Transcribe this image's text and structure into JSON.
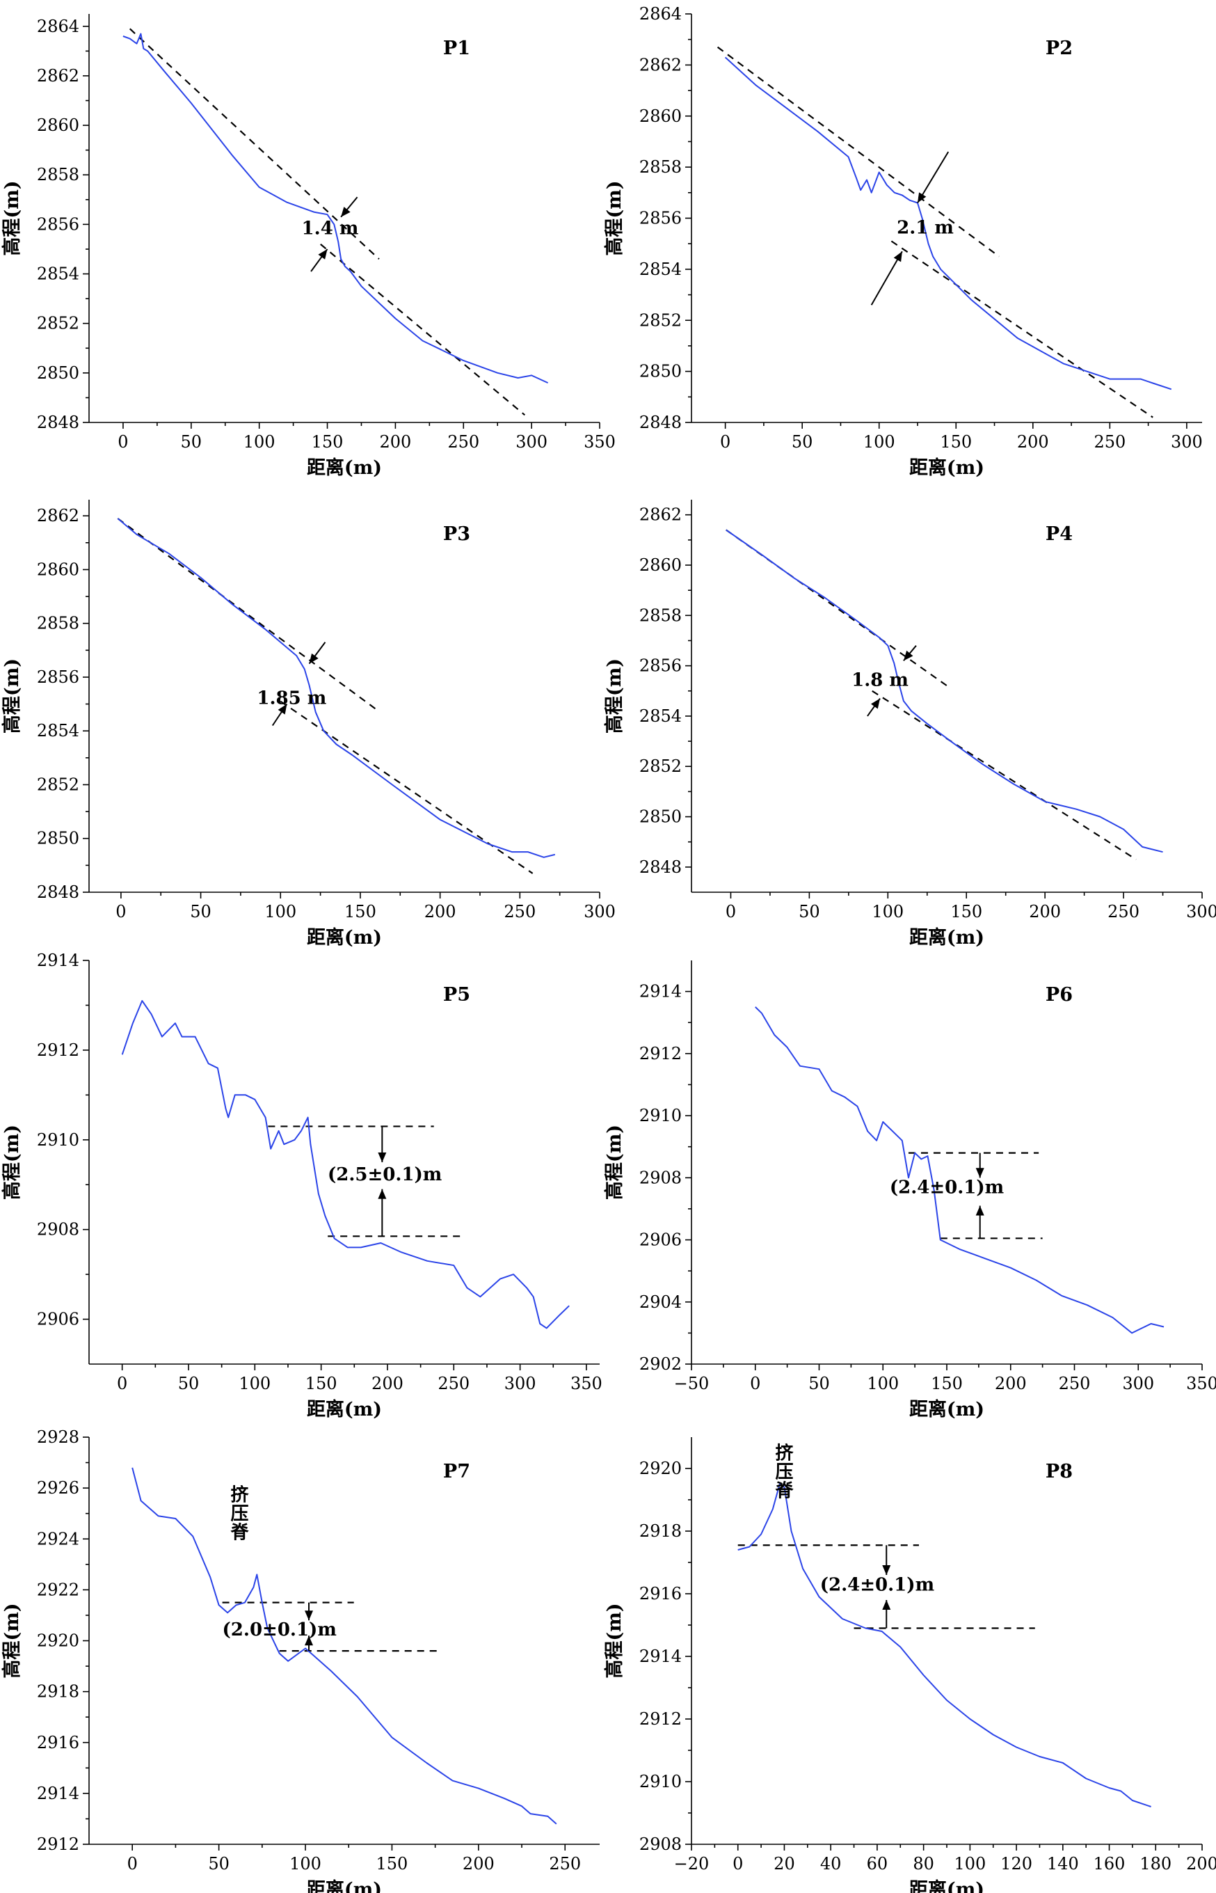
{
  "chart_data": [
    {
      "id": "P1",
      "type": "line",
      "title": "P1",
      "xlabel": "距离(m)",
      "ylabel": "高程(m)",
      "xlim": [
        -25,
        350
      ],
      "ylim": [
        2848,
        2864.5
      ],
      "xticks": [
        0,
        50,
        100,
        150,
        200,
        250,
        300,
        350
      ],
      "yticks": [
        2848,
        2850,
        2852,
        2854,
        2856,
        2858,
        2860,
        2862,
        2864
      ],
      "series": [
        {
          "name": "profile",
          "x": [
            0,
            5,
            10,
            13,
            15,
            18,
            30,
            50,
            80,
            100,
            120,
            140,
            150,
            155,
            158,
            160,
            163,
            167,
            175,
            200,
            220,
            250,
            265,
            275,
            290,
            300,
            312
          ],
          "y": [
            2863.6,
            2863.5,
            2863.3,
            2863.7,
            2863.1,
            2863.0,
            2862.2,
            2860.9,
            2858.8,
            2857.5,
            2856.9,
            2856.5,
            2856.4,
            2856.0,
            2855.3,
            2854.6,
            2854.3,
            2854.1,
            2853.5,
            2852.2,
            2851.3,
            2850.5,
            2850.2,
            2850.0,
            2849.8,
            2849.9,
            2849.6
          ]
        }
      ],
      "ref_lines": [
        {
          "x": [
            5,
            188
          ],
          "y": [
            2863.9,
            2854.6
          ]
        },
        {
          "x": [
            145,
            295
          ],
          "y": [
            2855.2,
            2848.3
          ]
        }
      ],
      "offset_label": "1.4 m",
      "offset_label_pos": [
        152,
        2855.6
      ],
      "arrows": [
        {
          "tail": [
            172,
            2857.1
          ],
          "head": [
            160,
            2856.3
          ]
        },
        {
          "tail": [
            138,
            2854.1
          ],
          "head": [
            150,
            2855.0
          ]
        }
      ]
    },
    {
      "id": "P2",
      "type": "line",
      "title": "P2",
      "xlabel": "距离(m)",
      "ylabel": "高程(m)",
      "xlim": [
        -22,
        310
      ],
      "ylim": [
        2848,
        2864
      ],
      "xticks": [
        0,
        50,
        100,
        150,
        200,
        250,
        300
      ],
      "yticks": [
        2848,
        2850,
        2852,
        2854,
        2856,
        2858,
        2860,
        2862,
        2864
      ],
      "series": [
        {
          "name": "profile",
          "x": [
            0,
            20,
            40,
            60,
            80,
            85,
            88,
            92,
            95,
            100,
            105,
            110,
            115,
            120,
            125,
            128,
            132,
            135,
            140,
            160,
            190,
            220,
            250,
            270,
            280,
            290
          ],
          "y": [
            2862.3,
            2861.2,
            2860.3,
            2859.4,
            2858.4,
            2857.6,
            2857.1,
            2857.5,
            2857.0,
            2857.8,
            2857.3,
            2857.0,
            2856.9,
            2856.7,
            2856.6,
            2856.0,
            2855.0,
            2854.5,
            2854.0,
            2852.8,
            2851.3,
            2850.3,
            2849.7,
            2849.7,
            2849.5,
            2849.3
          ]
        }
      ],
      "ref_lines": [
        {
          "x": [
            -5,
            178
          ],
          "y": [
            2862.7,
            2854.5
          ]
        },
        {
          "x": [
            108,
            278
          ],
          "y": [
            2855.1,
            2848.2
          ]
        }
      ],
      "offset_label": "2.1 m",
      "offset_label_pos": [
        130,
        2855.4
      ],
      "arrows": [
        {
          "tail": [
            145,
            2858.6
          ],
          "head": [
            125,
            2856.6
          ]
        },
        {
          "tail": [
            95,
            2852.6
          ],
          "head": [
            115,
            2854.7
          ]
        }
      ]
    },
    {
      "id": "P3",
      "type": "line",
      "title": "P3",
      "xlabel": "距离(m)",
      "ylabel": "高程(m)",
      "xlim": [
        -20,
        300
      ],
      "ylim": [
        2848,
        2862.6
      ],
      "xticks": [
        0,
        50,
        100,
        150,
        200,
        250,
        300
      ],
      "yticks": [
        2848,
        2850,
        2852,
        2854,
        2856,
        2858,
        2860,
        2862
      ],
      "series": [
        {
          "name": "profile",
          "x": [
            -2,
            10,
            30,
            50,
            70,
            90,
            110,
            115,
            118,
            122,
            127,
            135,
            145,
            170,
            200,
            230,
            245,
            255,
            265,
            272
          ],
          "y": [
            2861.9,
            2861.3,
            2860.6,
            2859.7,
            2858.7,
            2857.8,
            2856.8,
            2856.3,
            2855.7,
            2854.7,
            2854.0,
            2853.5,
            2853.1,
            2852.0,
            2850.7,
            2849.8,
            2849.5,
            2849.5,
            2849.3,
            2849.4
          ]
        }
      ],
      "ref_lines": [
        {
          "x": [
            -2,
            160
          ],
          "y": [
            2861.9,
            2854.8
          ]
        },
        {
          "x": [
            100,
            258
          ],
          "y": [
            2855.1,
            2848.7
          ]
        }
      ],
      "offset_label": "1.85 m",
      "offset_label_pos": [
        107,
        2855.0
      ],
      "arrows": [
        {
          "tail": [
            128,
            2857.3
          ],
          "head": [
            118,
            2856.5
          ]
        },
        {
          "tail": [
            95,
            2854.2
          ],
          "head": [
            104,
            2855.0
          ]
        }
      ]
    },
    {
      "id": "P4",
      "type": "line",
      "title": "P4",
      "xlabel": "距离(m)",
      "ylabel": "高程(m)",
      "xlim": [
        -25,
        300
      ],
      "ylim": [
        2847,
        2862.6
      ],
      "xticks": [
        0,
        50,
        100,
        150,
        200,
        250,
        300
      ],
      "yticks": [
        2848,
        2850,
        2852,
        2854,
        2856,
        2858,
        2860,
        2862
      ],
      "series": [
        {
          "name": "profile",
          "x": [
            -3,
            20,
            40,
            60,
            80,
            95,
            100,
            104,
            107,
            110,
            115,
            125,
            140,
            160,
            180,
            200,
            220,
            235,
            250,
            262,
            275
          ],
          "y": [
            2861.4,
            2860.4,
            2859.5,
            2858.7,
            2857.8,
            2857.1,
            2856.8,
            2856.1,
            2855.3,
            2854.6,
            2854.2,
            2853.7,
            2853.0,
            2852.1,
            2851.3,
            2850.6,
            2850.3,
            2850.0,
            2849.5,
            2848.8,
            2848.6
          ]
        }
      ],
      "ref_lines": [
        {
          "x": [
            -3,
            140
          ],
          "y": [
            2861.4,
            2855.1
          ]
        },
        {
          "x": [
            90,
            258
          ],
          "y": [
            2855.0,
            2848.3
          ]
        }
      ],
      "offset_label": "1.8 m",
      "offset_label_pos": [
        95,
        2855.2
      ],
      "arrows": [
        {
          "tail": [
            118,
            2856.8
          ],
          "head": [
            110,
            2856.2
          ]
        },
        {
          "tail": [
            87,
            2854.0
          ],
          "head": [
            95,
            2854.7
          ]
        }
      ]
    },
    {
      "id": "P5",
      "type": "line",
      "title": "P5",
      "xlabel": "距离(m)",
      "ylabel": "高程(m)",
      "xlim": [
        -25,
        360
      ],
      "ylim": [
        2905,
        2914
      ],
      "xticks": [
        0,
        50,
        100,
        150,
        200,
        250,
        300,
        350
      ],
      "yticks": [
        2906,
        2908,
        2910,
        2912,
        2914
      ],
      "series": [
        {
          "name": "profile",
          "x": [
            0,
            8,
            15,
            22,
            30,
            40,
            45,
            55,
            65,
            72,
            78,
            80,
            85,
            93,
            100,
            108,
            112,
            118,
            122,
            130,
            135,
            140,
            142,
            148,
            153,
            160,
            170,
            180,
            195,
            210,
            230,
            250,
            260,
            270,
            285,
            295,
            305,
            310,
            315,
            320,
            330,
            337
          ],
          "y": [
            2911.9,
            2912.6,
            2913.1,
            2912.8,
            2912.3,
            2912.6,
            2912.3,
            2912.3,
            2911.7,
            2911.6,
            2910.7,
            2910.5,
            2911.0,
            2911.0,
            2910.9,
            2910.5,
            2909.8,
            2910.2,
            2909.9,
            2910.0,
            2910.2,
            2910.5,
            2909.9,
            2908.8,
            2908.3,
            2907.8,
            2907.6,
            2907.6,
            2907.7,
            2907.5,
            2907.3,
            2907.2,
            2906.7,
            2906.5,
            2906.9,
            2907.0,
            2906.7,
            2906.5,
            2905.9,
            2905.8,
            2906.1,
            2906.3
          ]
        }
      ],
      "ref_lines": [
        {
          "x": [
            110,
            235
          ],
          "y": [
            2910.3,
            2910.3
          ]
        },
        {
          "x": [
            155,
            255
          ],
          "y": [
            2907.85,
            2907.85
          ]
        }
      ],
      "offset_label": "(2.5±0.1)m",
      "offset_label_pos": [
        198,
        2909.1
      ],
      "arrows": [
        {
          "tail": [
            196,
            2910.3
          ],
          "head": [
            196,
            2909.5
          ]
        },
        {
          "tail": [
            196,
            2907.85
          ],
          "head": [
            196,
            2908.9
          ]
        }
      ]
    },
    {
      "id": "P6",
      "type": "line",
      "title": "P6",
      "xlabel": "距离(m)",
      "ylabel": "高程(m)",
      "xlim": [
        -50,
        350
      ],
      "ylim": [
        2902,
        2915
      ],
      "xticks": [
        -50,
        0,
        50,
        100,
        150,
        200,
        250,
        300,
        350
      ],
      "yticks": [
        2902,
        2904,
        2906,
        2908,
        2910,
        2912,
        2914
      ],
      "series": [
        {
          "name": "profile",
          "x": [
            0,
            5,
            15,
            25,
            35,
            50,
            60,
            70,
            80,
            88,
            95,
            100,
            110,
            115,
            120,
            125,
            130,
            135,
            140,
            145,
            160,
            180,
            200,
            220,
            240,
            260,
            280,
            295,
            300,
            310,
            320
          ],
          "y": [
            2913.5,
            2913.3,
            2912.6,
            2912.2,
            2911.6,
            2911.5,
            2910.8,
            2910.6,
            2910.3,
            2909.5,
            2909.2,
            2909.8,
            2909.4,
            2909.2,
            2908.0,
            2908.8,
            2908.6,
            2908.7,
            2907.6,
            2906.0,
            2905.7,
            2905.4,
            2905.1,
            2904.7,
            2904.2,
            2903.9,
            2903.5,
            2903.0,
            2903.1,
            2903.3,
            2903.2
          ]
        }
      ],
      "ref_lines": [
        {
          "x": [
            120,
            222
          ],
          "y": [
            2908.8,
            2908.8
          ]
        },
        {
          "x": [
            145,
            225
          ],
          "y": [
            2906.05,
            2906.05
          ]
        }
      ],
      "offset_label": "(2.4±0.1)m",
      "offset_label_pos": [
        150,
        2907.5
      ],
      "arrows": [
        {
          "tail": [
            176,
            2908.8
          ],
          "head": [
            176,
            2908.0
          ]
        },
        {
          "tail": [
            176,
            2906.05
          ],
          "head": [
            176,
            2907.1
          ]
        }
      ]
    },
    {
      "id": "P7",
      "type": "line",
      "title": "P7",
      "xlabel": "距离(m)",
      "ylabel": "高程(m)",
      "xlim": [
        -25,
        270
      ],
      "ylim": [
        2912,
        2928
      ],
      "xticks": [
        0,
        50,
        100,
        150,
        200,
        250
      ],
      "yticks": [
        2912,
        2914,
        2916,
        2918,
        2920,
        2922,
        2924,
        2926,
        2928
      ],
      "series": [
        {
          "name": "profile",
          "x": [
            0,
            5,
            15,
            25,
            35,
            45,
            50,
            55,
            60,
            65,
            70,
            72,
            75,
            78,
            85,
            90,
            100,
            105,
            115,
            130,
            150,
            170,
            185,
            200,
            215,
            225,
            230,
            240,
            245
          ],
          "y": [
            2926.8,
            2925.5,
            2924.9,
            2924.8,
            2924.1,
            2922.5,
            2921.4,
            2921.1,
            2921.4,
            2921.5,
            2922.1,
            2922.6,
            2921.5,
            2920.5,
            2919.5,
            2919.2,
            2919.7,
            2919.4,
            2918.8,
            2917.8,
            2916.2,
            2915.2,
            2914.5,
            2914.2,
            2913.8,
            2913.5,
            2913.2,
            2913.1,
            2912.8
          ]
        }
      ],
      "ref_lines": [
        {
          "x": [
            52,
            128
          ],
          "y": [
            2921.5,
            2921.5
          ]
        },
        {
          "x": [
            85,
            178
          ],
          "y": [
            2919.6,
            2919.6
          ]
        }
      ],
      "offset_label": "(2.0±0.1)m",
      "offset_label_pos": [
        85,
        2920.2
      ],
      "annotation": {
        "text": [
          "挤",
          "压",
          "脊"
        ],
        "pos": [
          62,
          2925.5
        ]
      },
      "arrows": [
        {
          "tail": [
            102,
            2921.5
          ],
          "head": [
            102,
            2920.8
          ]
        },
        {
          "tail": [
            102,
            2919.6
          ],
          "head": [
            102,
            2920.2
          ]
        }
      ]
    },
    {
      "id": "P8",
      "type": "line",
      "title": "P8",
      "xlabel": "距离(m)",
      "ylabel": "高程(m)",
      "xlim": [
        -20,
        200
      ],
      "ylim": [
        2908,
        2921
      ],
      "xticks": [
        -20,
        0,
        20,
        40,
        60,
        80,
        100,
        120,
        140,
        160,
        180,
        200
      ],
      "yticks": [
        2908,
        2910,
        2912,
        2914,
        2916,
        2918,
        2920
      ],
      "series": [
        {
          "name": "profile",
          "x": [
            0,
            5,
            10,
            15,
            18,
            20,
            23,
            28,
            35,
            45,
            55,
            62,
            70,
            80,
            90,
            100,
            110,
            120,
            130,
            140,
            150,
            160,
            165,
            170,
            178
          ],
          "y": [
            2917.4,
            2917.5,
            2917.9,
            2918.7,
            2919.5,
            2919.4,
            2918.0,
            2916.8,
            2915.9,
            2915.2,
            2914.9,
            2914.8,
            2914.3,
            2913.4,
            2912.6,
            2912.0,
            2911.5,
            2911.1,
            2910.8,
            2910.6,
            2910.1,
            2909.8,
            2909.7,
            2909.4,
            2909.2
          ]
        }
      ],
      "ref_lines": [
        {
          "x": [
            0,
            78
          ],
          "y": [
            2917.55,
            2917.55
          ]
        },
        {
          "x": [
            50,
            128
          ],
          "y": [
            2914.9,
            2914.9
          ]
        }
      ],
      "offset_label": "(2.4±0.1)m",
      "offset_label_pos": [
        60,
        2916.1
      ],
      "annotation": {
        "text": [
          "挤",
          "压",
          "脊"
        ],
        "pos": [
          20,
          2920.3
        ]
      },
      "arrows": [
        {
          "tail": [
            64,
            2917.55
          ],
          "head": [
            64,
            2916.6
          ]
        },
        {
          "tail": [
            64,
            2914.9
          ],
          "head": [
            64,
            2915.8
          ]
        }
      ]
    }
  ]
}
